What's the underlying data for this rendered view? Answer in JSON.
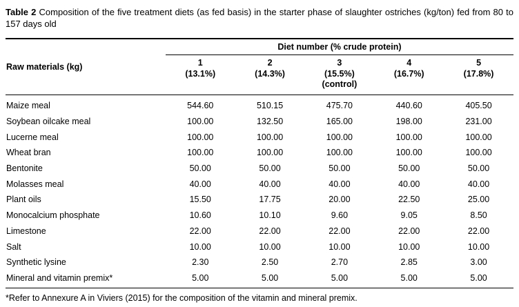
{
  "caption": {
    "label": "Table 2",
    "text": " Composition of the five treatment diets (as fed basis) in the starter phase of slaughter ostriches (kg/ton) fed from 80 to 157 days old"
  },
  "table": {
    "row_header": "Raw materials (kg)",
    "group_header": "Diet number (% crude protein)",
    "columns": [
      [
        "1",
        "(13.1%)"
      ],
      [
        "2",
        "(14.3%)"
      ],
      [
        "3",
        "(15.5%)",
        "(control)"
      ],
      [
        "4",
        "(16.7%)"
      ],
      [
        "5",
        "(17.8%)"
      ]
    ],
    "rows": [
      {
        "label": "Maize meal",
        "values": [
          "544.60",
          "510.15",
          "475.70",
          "440.60",
          "405.50"
        ]
      },
      {
        "label": "Soybean oilcake meal",
        "values": [
          "100.00",
          "132.50",
          "165.00",
          "198.00",
          "231.00"
        ]
      },
      {
        "label": "Lucerne meal",
        "values": [
          "100.00",
          "100.00",
          "100.00",
          "100.00",
          "100.00"
        ]
      },
      {
        "label": "Wheat bran",
        "values": [
          "100.00",
          "100.00",
          "100.00",
          "100.00",
          "100.00"
        ]
      },
      {
        "label": "Bentonite",
        "values": [
          "50.00",
          "50.00",
          "50.00",
          "50.00",
          "50.00"
        ]
      },
      {
        "label": "Molasses meal",
        "values": [
          "40.00",
          "40.00",
          "40.00",
          "40.00",
          "40.00"
        ]
      },
      {
        "label": "Plant oils",
        "values": [
          "15.50",
          "17.75",
          "20.00",
          "22.50",
          "25.00"
        ]
      },
      {
        "label": "Monocalcium phosphate",
        "values": [
          "10.60",
          "10.10",
          "9.60",
          "9.05",
          "8.50"
        ]
      },
      {
        "label": "Limestone",
        "values": [
          "22.00",
          "22.00",
          "22.00",
          "22.00",
          "22.00"
        ]
      },
      {
        "label": "Salt",
        "values": [
          "10.00",
          "10.00",
          "10.00",
          "10.00",
          "10.00"
        ]
      },
      {
        "label": "Synthetic lysine",
        "values": [
          "2.30",
          "2.50",
          "2.70",
          "2.85",
          "3.00"
        ]
      },
      {
        "label": "Mineral and vitamin premix*",
        "values": [
          "5.00",
          "5.00",
          "5.00",
          "5.00",
          "5.00"
        ]
      }
    ],
    "footnote": "*Refer to Annexure A in Viviers (2015) for the composition of the vitamin and mineral premix."
  }
}
